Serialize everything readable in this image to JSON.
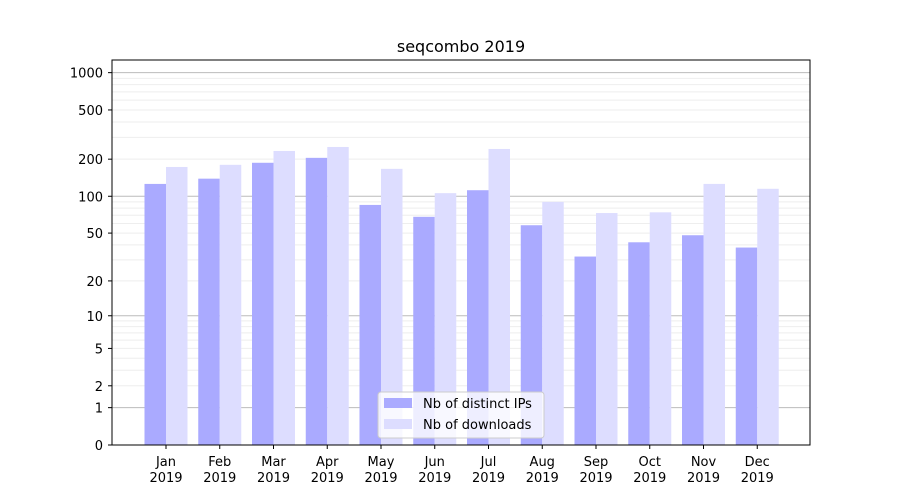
{
  "chart_data": {
    "type": "bar",
    "title": "seqcombo 2019",
    "xlabel": "",
    "ylabel": "",
    "yscale": "symlog (log10(1+y))",
    "ylim": [
      0,
      1200
    ],
    "grid": true,
    "legend_position": "bottom-center",
    "y_ticks": [
      0,
      1,
      2,
      5,
      10,
      20,
      50,
      100,
      200,
      500,
      1000
    ],
    "categories": [
      "Jan\n2019",
      "Feb\n2019",
      "Mar\n2019",
      "Apr\n2019",
      "May\n2019",
      "Jun\n2019",
      "Jul\n2019",
      "Aug\n2019",
      "Sep\n2019",
      "Oct\n2019",
      "Nov\n2019",
      "Dec\n2019"
    ],
    "series": [
      {
        "name": "Nb of distinct IPs",
        "color": "#aaaaff",
        "values": [
          126,
          139,
          187,
          205,
          85,
          68,
          112,
          58,
          32,
          42,
          48,
          38
        ]
      },
      {
        "name": "Nb of downloads",
        "color": "#ddddff",
        "values": [
          173,
          180,
          233,
          251,
          167,
          106,
          242,
          90,
          73,
          74,
          126,
          115
        ]
      }
    ]
  }
}
